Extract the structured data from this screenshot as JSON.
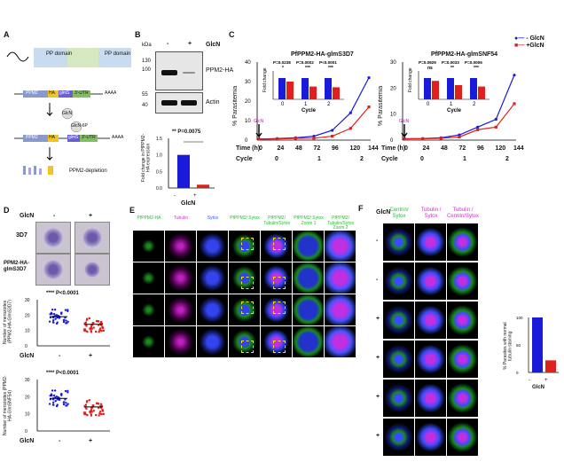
{
  "panelA": {
    "label": "A",
    "pp_domain_left": "PP domain",
    "pp_domain_right": "PP domain",
    "construct1": [
      "PPM2",
      "HA",
      "glmS",
      "3'-UTR"
    ],
    "construct2": [
      "PPM2",
      "HA",
      "glmS",
      "3'-UTR"
    ],
    "polyA": "AAAA",
    "glcn": "GlcN",
    "glcn6p": "GlcN-6P",
    "depletion": "PPM2-depletion"
  },
  "panelB": {
    "label": "B",
    "kda": "kDa",
    "minus": "-",
    "plus": "+",
    "glcn": "GlcN",
    "markers": [
      "130",
      "100",
      "55",
      "40"
    ],
    "ppm2_label": "PPM2-HA",
    "actin_label": "Actin",
    "stat": "** P=0.0075",
    "ylabel": "Fold change in PfPPM2-HA expression",
    "yticks": [
      "1.5",
      "1.0",
      "0.5",
      "0.0"
    ],
    "x_minus": "-",
    "x_plus": "+",
    "xlabel": "GlcN"
  },
  "panelC": {
    "label": "C",
    "legend_minus": "- GlcN",
    "legend_plus": "+GlcN",
    "left_title": "PfPPM2-HA-glmS3D7",
    "right_title": "PfPPM2-HA-glmSNF54",
    "ylabel": "% Parasitemia",
    "inset_ylabel": "Fold change",
    "inset_xlabel": "Cycle",
    "left_pvals": [
      "P=0.0238",
      "P=0.0002",
      "P<0.0001"
    ],
    "left_stars": [
      "*",
      "***",
      "***"
    ],
    "right_pvals": [
      "P=0.0929",
      "P=0.0033",
      "P=0.0006"
    ],
    "right_stars": [
      "ns",
      "**",
      "***"
    ],
    "cycle_ticks": [
      "0",
      "1",
      "2"
    ],
    "time_label": "Time (h)",
    "cycle_label": "Cycle",
    "time_ticks": [
      "0",
      "24",
      "48",
      "72",
      "96",
      "120",
      "144"
    ],
    "cycle_values": [
      "0",
      "1",
      "2"
    ],
    "glcn_arrow": "GlcN",
    "left_yticks": [
      "40",
      "30",
      "20",
      "10",
      "0"
    ],
    "right_yticks": [
      "30",
      "20",
      "10",
      "0"
    ]
  },
  "panelD": {
    "label": "D",
    "glcn": "GlcN",
    "minus": "-",
    "plus": "+",
    "row1": "3D7",
    "row2": "PPM2-HA-glmS3D7",
    "plot1_ylabel": "Number of merozoites (PPM2-HA-GlmS3D7)",
    "plot2_ylabel": "Number of merozoites (PPM2-HA-GlmSNF54)",
    "plot1_stat": "**** P<0.0001",
    "plot2_stat": "**** P<0.0001",
    "yticks": [
      "30",
      "20",
      "10",
      "0"
    ]
  },
  "panelE": {
    "label": "E",
    "headers": [
      "PfPPM2-HA",
      "Tubulin",
      "Sytox",
      "PfPPM2/ Sytox",
      "PfPPM2/ Tubulin/Sytox",
      "PfPPM2/ Sytox Zoom 1",
      "PfPPM2/ Tubulin/Sytox Zoom 2"
    ]
  },
  "panelF": {
    "label": "F",
    "glcn": "GlcN",
    "headers": [
      "Centrin/ Sytox",
      "Tubulin / Sytox",
      "Tubulin / Centrin/Sytox"
    ],
    "rows": [
      "-",
      "-",
      "+",
      "+",
      "+",
      "+"
    ],
    "bar_ylabel": "% Parasites with normal tubulin staining",
    "bar_yticks": [
      "100",
      "50",
      "0"
    ],
    "bar_x_minus": "-",
    "bar_x_plus": "+",
    "bar_xlabel": "GlcN"
  },
  "chart_data": [
    {
      "type": "line",
      "id": "C-left",
      "title": "PfPPM2-HA-glmS3D7",
      "ylabel": "% Parasitemia",
      "x": [
        0,
        24,
        48,
        72,
        96,
        120,
        144
      ],
      "ylim": [
        0,
        40
      ],
      "series": [
        {
          "name": "- GlcN",
          "color": "#1a1adb",
          "values": [
            0.5,
            0.8,
            1.2,
            2.0,
            5.0,
            14.0,
            32.0
          ]
        },
        {
          "name": "+GlcN",
          "color": "#e0201c",
          "values": [
            0.5,
            0.6,
            0.9,
            1.0,
            2.0,
            6.0,
            17.0
          ]
        }
      ]
    },
    {
      "type": "bar",
      "id": "C-left-inset",
      "ylabel": "Fold change",
      "xlabel": "Cycle",
      "categories": [
        "0",
        "1",
        "2"
      ],
      "series": [
        {
          "name": "- GlcN",
          "color": "#1a1adb",
          "values": [
            3.0,
            3.0,
            3.0
          ]
        },
        {
          "name": "+GlcN",
          "color": "#e0201c",
          "values": [
            2.5,
            1.8,
            1.7
          ]
        }
      ],
      "ylim": [
        0,
        4
      ]
    },
    {
      "type": "line",
      "id": "C-right",
      "title": "PfPPM2-HA-glmSNF54",
      "ylabel": "% Parasitemia",
      "x": [
        0,
        24,
        48,
        72,
        96,
        120,
        144
      ],
      "ylim": [
        0,
        30
      ],
      "series": [
        {
          "name": "- GlcN",
          "color": "#1a1adb",
          "values": [
            0.5,
            0.6,
            0.9,
            2.0,
            5.0,
            8.0,
            25.0
          ]
        },
        {
          "name": "+GlcN",
          "color": "#e0201c",
          "values": [
            0.5,
            0.5,
            0.7,
            1.2,
            4.0,
            5.0,
            14.0
          ]
        }
      ]
    },
    {
      "type": "bar",
      "id": "C-right-inset",
      "ylabel": "Fold change",
      "xlabel": "Cycle",
      "categories": [
        "0",
        "1",
        "2"
      ],
      "series": [
        {
          "name": "- GlcN",
          "color": "#1a1adb",
          "values": [
            3.0,
            3.0,
            3.0
          ]
        },
        {
          "name": "+GlcN",
          "color": "#e0201c",
          "values": [
            2.6,
            2.0,
            1.8
          ]
        }
      ],
      "ylim": [
        0,
        4
      ]
    },
    {
      "type": "bar",
      "id": "B-quant",
      "ylabel": "Fold change in PfPPM2-HA expression",
      "categories": [
        "-",
        "+"
      ],
      "values": [
        1.0,
        0.1
      ],
      "colors": [
        "#1a1adb",
        "#e0201c"
      ],
      "ylim": [
        0,
        1.5
      ]
    },
    {
      "type": "scatter",
      "id": "D-plot1",
      "ylabel": "Number of merozoites (PPM2-HA-GlmS3D7)",
      "categories": [
        "-",
        "+"
      ],
      "means": [
        19,
        14
      ],
      "colors": [
        "#1a1adb",
        "#e0201c"
      ],
      "ylim": [
        0,
        30
      ]
    },
    {
      "type": "scatter",
      "id": "D-plot2",
      "ylabel": "Number of merozoites (PPM2-HA-GlmSNF54)",
      "categories": [
        "-",
        "+"
      ],
      "means": [
        19,
        14
      ],
      "colors": [
        "#1a1adb",
        "#e0201c"
      ],
      "ylim": [
        0,
        30
      ]
    },
    {
      "type": "bar",
      "id": "F-bar",
      "ylabel": "% Parasites with normal tubulin staining",
      "categories": [
        "-",
        "+"
      ],
      "values": [
        100,
        22
      ],
      "colors": [
        "#1a1adb",
        "#e0201c"
      ],
      "ylim": [
        0,
        100
      ]
    }
  ]
}
